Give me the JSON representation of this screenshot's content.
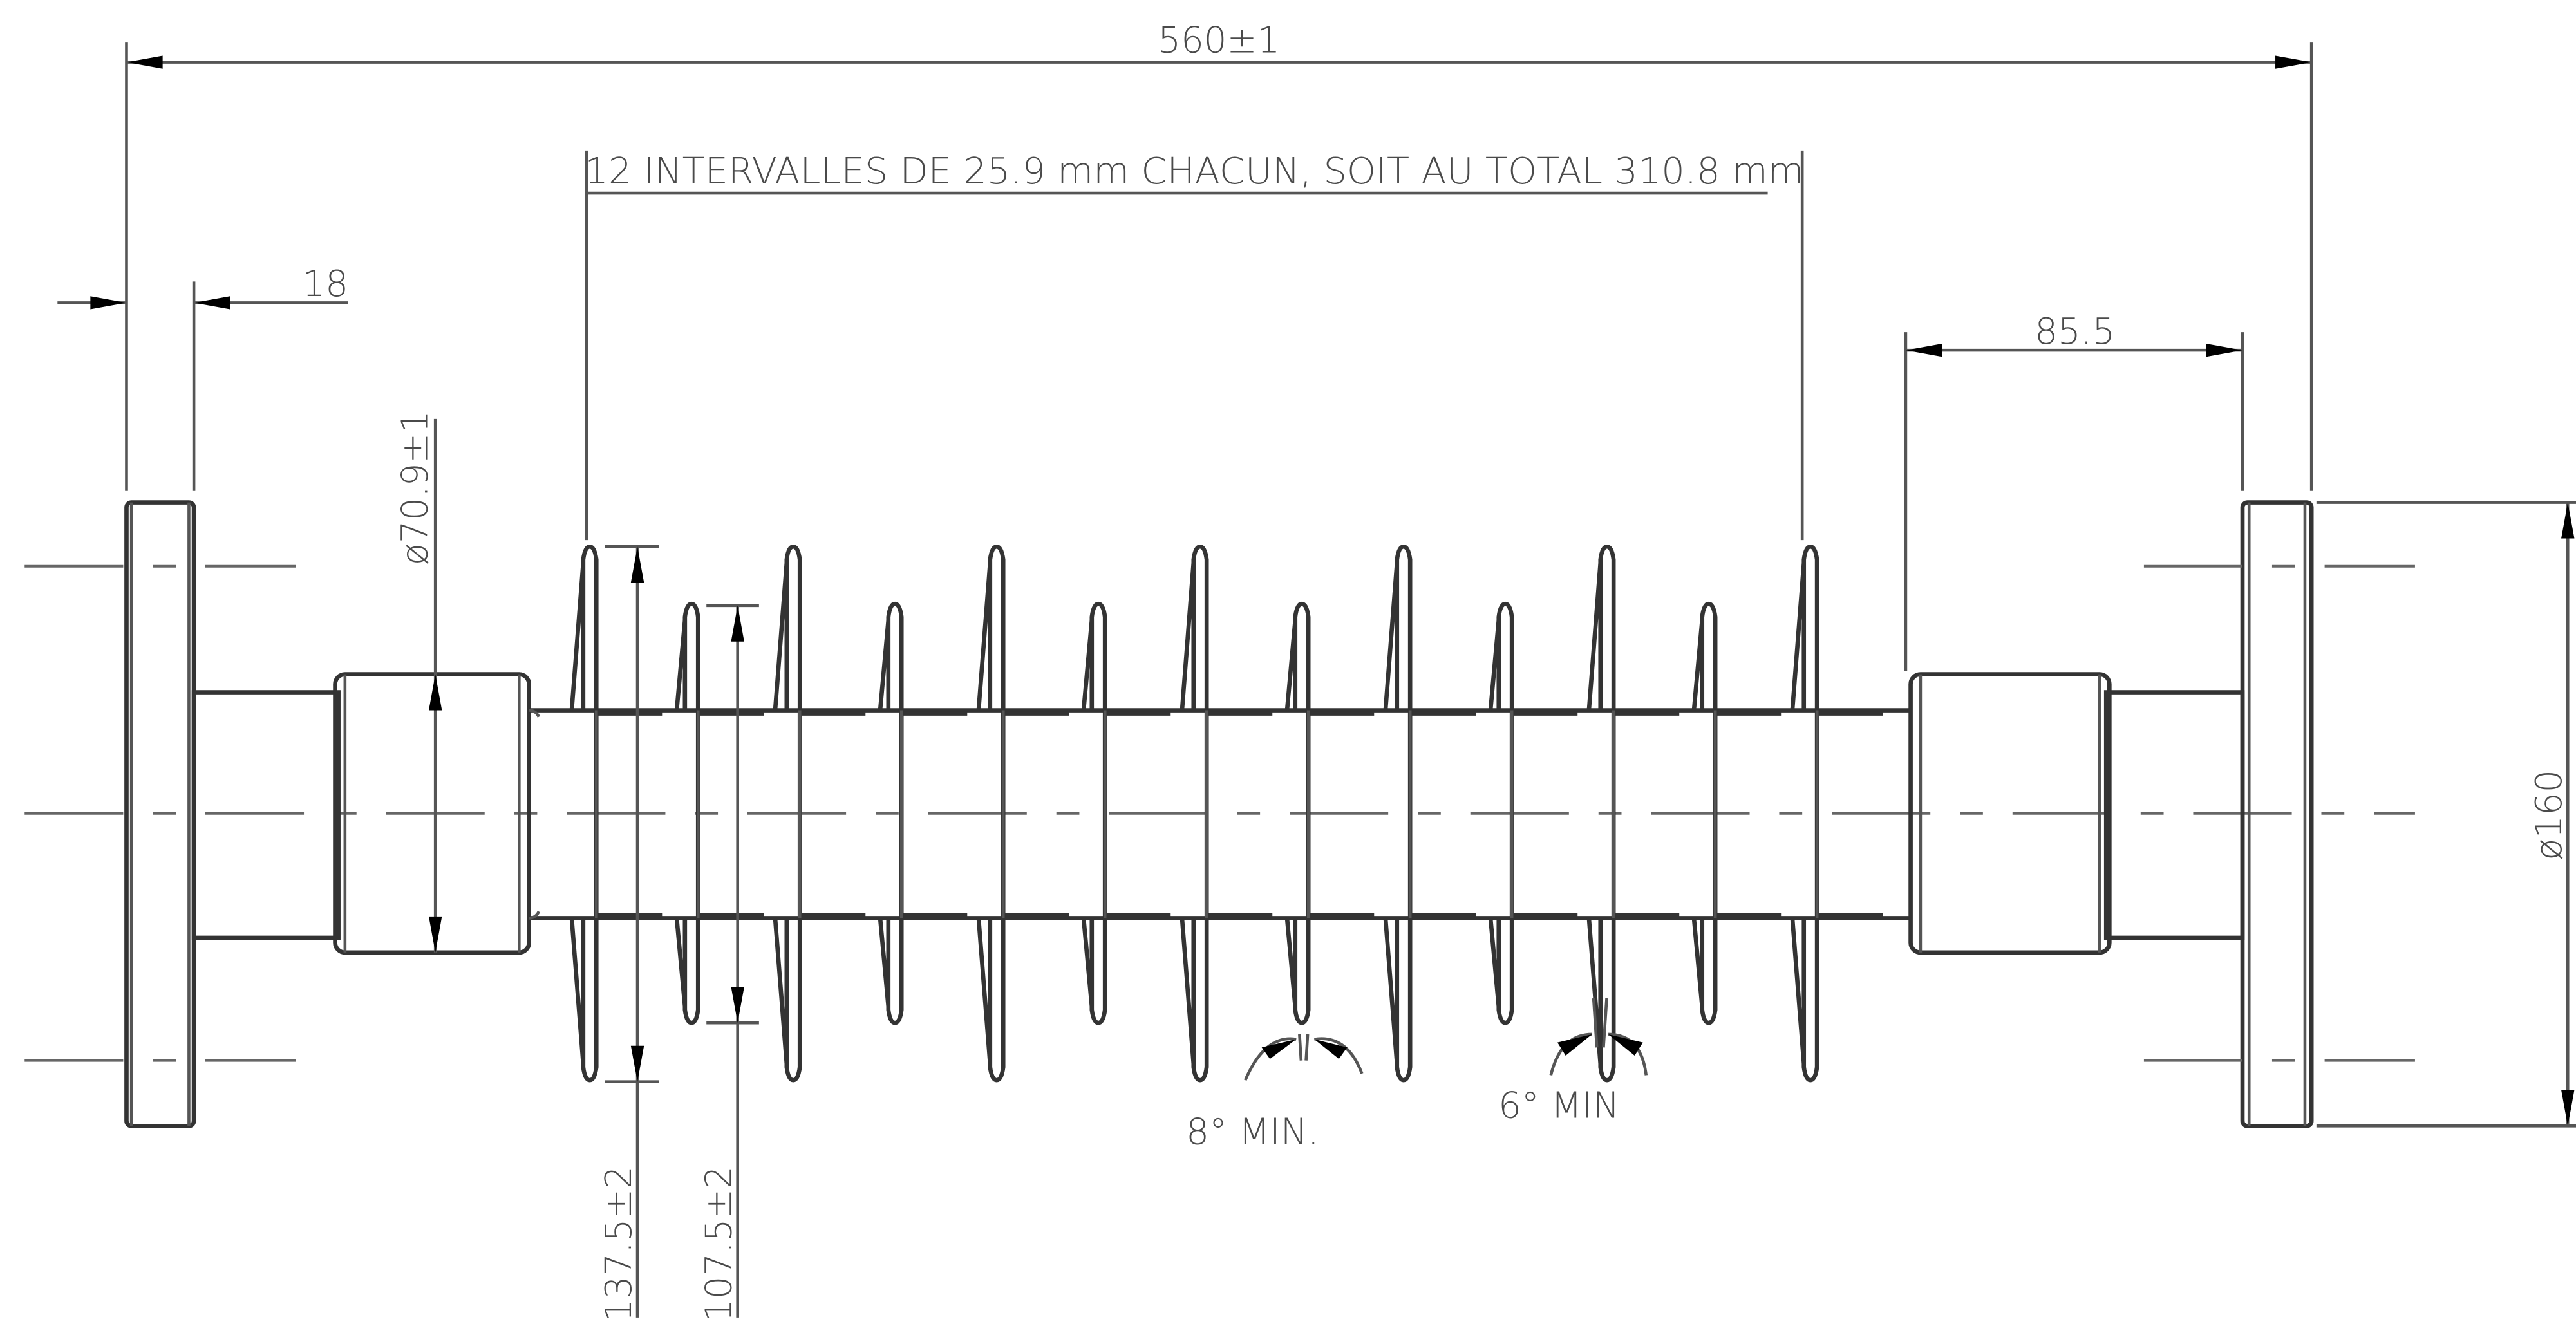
{
  "dimensions": {
    "overall_length": "560±1",
    "intervals_note": "12 INTERVALLES DE 25.9 mm CHACUN, SOIT AU TOTAL 310.8 mm",
    "flange_thickness": "18",
    "end_fitting_length": "85.5",
    "core_diameter": "ø70.9±1",
    "flange_diameter": "ø160",
    "large_shed_diameter": "137.5±2",
    "small_shed_diameter": "107.5±2"
  },
  "angles": {
    "small_shed_angle": "8° MIN.",
    "large_shed_angle": "6° MIN"
  },
  "sheds": {
    "count": 13,
    "pattern": [
      "large",
      "small",
      "large",
      "small",
      "large",
      "small",
      "large",
      "small",
      "large",
      "small",
      "large",
      "small",
      "large"
    ]
  }
}
